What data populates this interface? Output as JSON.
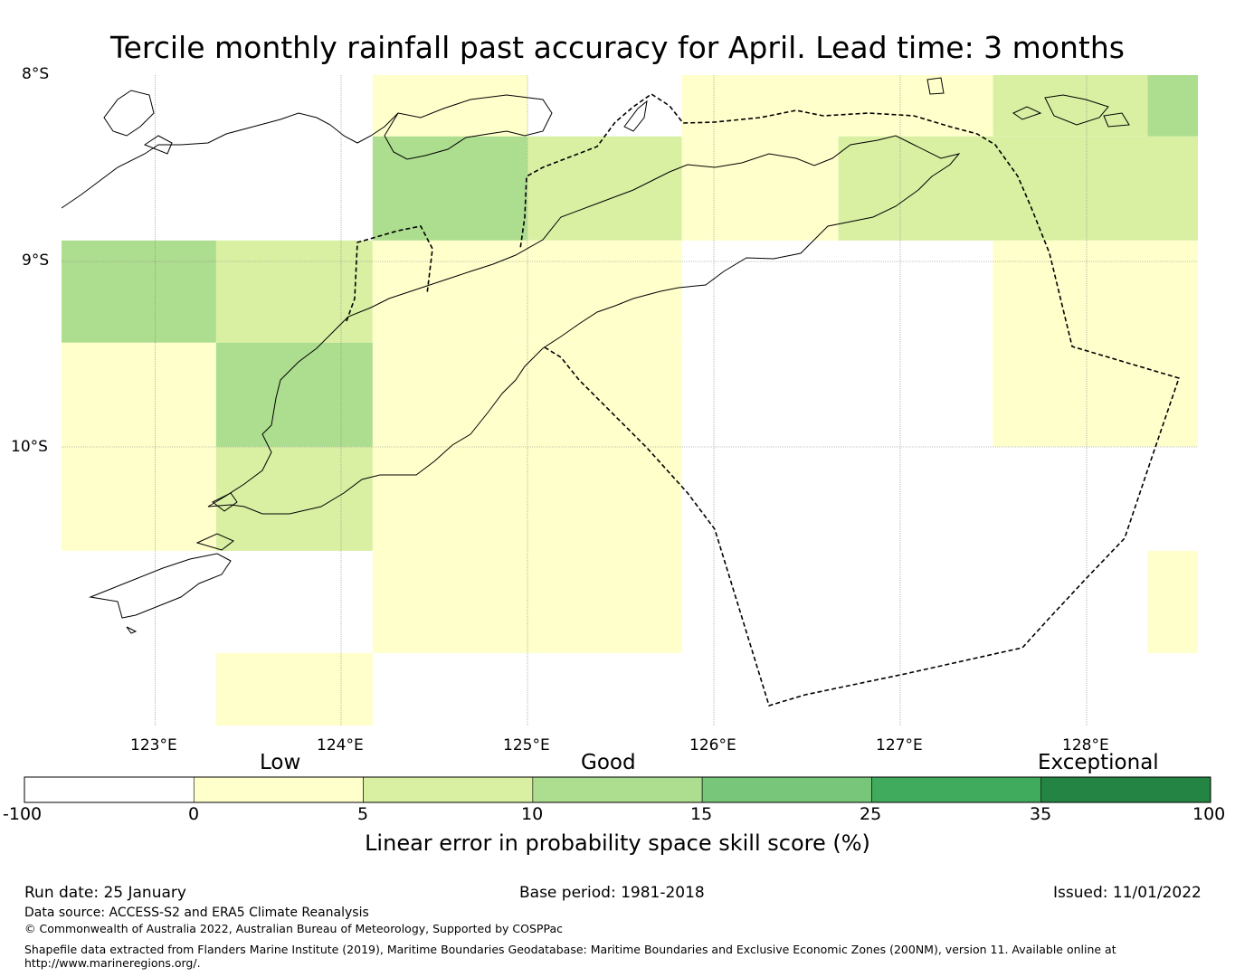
{
  "title": "Tercile monthly rainfall past accuracy for April. Lead time: 3 months",
  "map": {
    "lat_labels": [
      "8°S",
      "9°S",
      "10°S"
    ],
    "lon_labels": [
      "123°E",
      "124°E",
      "125°E",
      "126°E",
      "127°E",
      "128°E"
    ],
    "lon_range": [
      122.5,
      128.6
    ],
    "lat_range": [
      -8.0,
      -11.5
    ],
    "grid_cells": [
      {
        "lon": [
          124.17,
          125.0
        ],
        "lat": [
          -8.0,
          -8.33
        ],
        "class": "low"
      },
      {
        "lon": [
          125.83,
          127.5
        ],
        "lat": [
          -8.0,
          -8.33
        ],
        "class": "low"
      },
      {
        "lon": [
          127.5,
          128.33
        ],
        "lat": [
          -8.0,
          -8.33
        ],
        "class": "good_low"
      },
      {
        "lon": [
          128.33,
          128.6
        ],
        "lat": [
          -8.0,
          -8.33
        ],
        "class": "good_mid"
      },
      {
        "lon": [
          124.17,
          125.0
        ],
        "lat": [
          -8.33,
          -8.89
        ],
        "class": "good_mid"
      },
      {
        "lon": [
          125.0,
          125.83
        ],
        "lat": [
          -8.33,
          -8.89
        ],
        "class": "good_low"
      },
      {
        "lon": [
          125.83,
          126.67
        ],
        "lat": [
          -8.33,
          -8.89
        ],
        "class": "low"
      },
      {
        "lon": [
          126.67,
          128.6
        ],
        "lat": [
          -8.33,
          -8.89
        ],
        "class": "good_low"
      },
      {
        "lon": [
          122.5,
          123.33
        ],
        "lat": [
          -8.89,
          -9.44
        ],
        "class": "good_mid"
      },
      {
        "lon": [
          123.33,
          124.17
        ],
        "lat": [
          -8.89,
          -9.44
        ],
        "class": "good_low"
      },
      {
        "lon": [
          124.17,
          125.83
        ],
        "lat": [
          -8.89,
          -9.44
        ],
        "class": "low"
      },
      {
        "lon": [
          127.5,
          128.6
        ],
        "lat": [
          -8.89,
          -10.0
        ],
        "class": "low"
      },
      {
        "lon": [
          122.5,
          123.33
        ],
        "lat": [
          -9.44,
          -10.56
        ],
        "class": "low"
      },
      {
        "lon": [
          123.33,
          124.17
        ],
        "lat": [
          -9.44,
          -10.0
        ],
        "class": "good_mid"
      },
      {
        "lon": [
          124.17,
          125.83
        ],
        "lat": [
          -9.44,
          -11.11
        ],
        "class": "low"
      },
      {
        "lon": [
          123.33,
          124.17
        ],
        "lat": [
          -10.0,
          -10.56
        ],
        "class": "good_low"
      },
      {
        "lon": [
          128.33,
          128.6
        ],
        "lat": [
          -10.56,
          -11.11
        ],
        "class": "low"
      },
      {
        "lon": [
          123.33,
          124.17
        ],
        "lat": [
          -11.11,
          -11.5
        ],
        "class": "low"
      }
    ]
  },
  "colorbar": {
    "categories": [
      "Low",
      "Good",
      "Exceptional"
    ],
    "ticks": [
      "-100",
      "0",
      "5",
      "10",
      "15",
      "25",
      "35",
      "100"
    ],
    "colors": [
      "#ffffff",
      "#ffffcc",
      "#d9f0a3",
      "#addd8e",
      "#78c679",
      "#41ab5d",
      "#238443"
    ],
    "label": "Linear error in probability space skill score (%)"
  },
  "footer": {
    "run_date": "Run date: 25 January",
    "base_period": "Base period: 1981-2018",
    "issued": "Issued: 11/01/2022",
    "data_source": "Data source: ACCESS-S2 and ERA5 Climate Reanalysis",
    "copyright": "© Commonwealth of Australia 2022, Australian Bureau of Meteorology, Supported by COSPPac",
    "shapefile_line1": "Shapefile data extracted from Flanders Marine Institute (2019), Maritime Boundaries Geodatabase: Maritime Boundaries and Exclusive Economic Zones (200NM), version 11. Available online at",
    "shapefile_line2": "http://www.marineregions.org/."
  }
}
